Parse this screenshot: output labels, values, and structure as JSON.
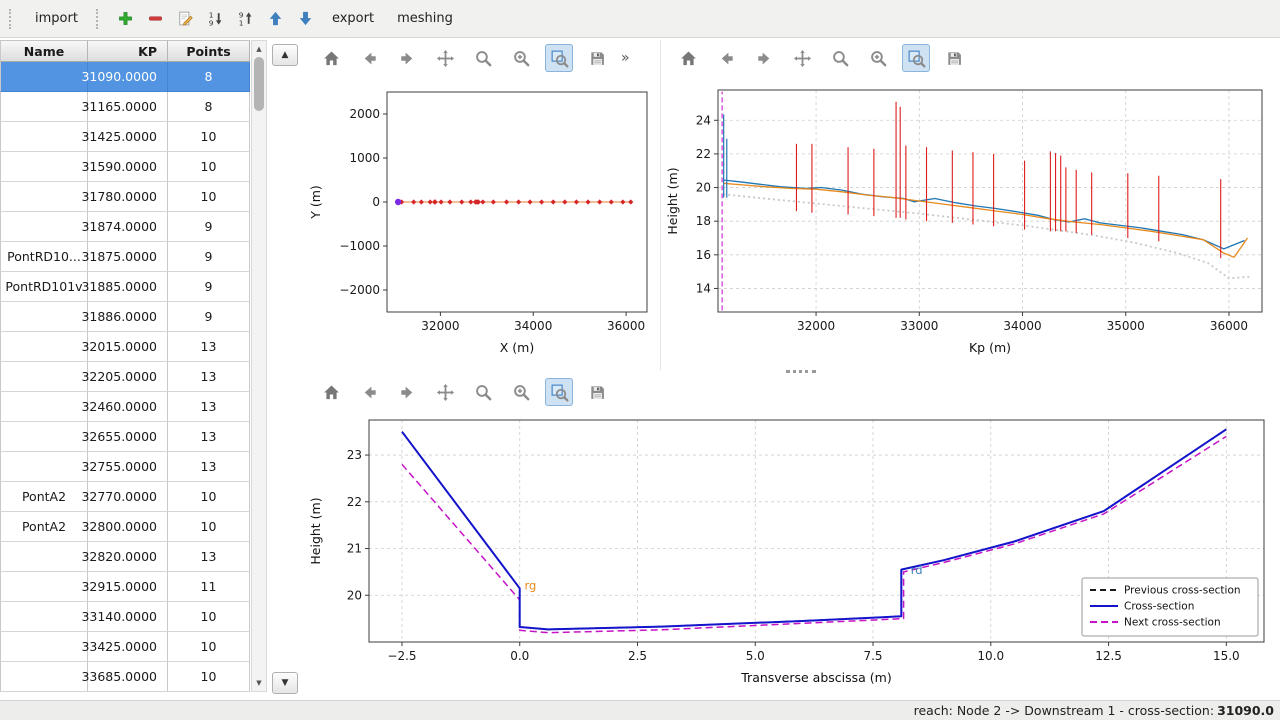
{
  "menubar": {
    "items": [
      {
        "kind": "grip"
      },
      {
        "kind": "text",
        "name": "import",
        "label": "import"
      },
      {
        "kind": "grip"
      },
      {
        "kind": "icon",
        "name": "add"
      },
      {
        "kind": "icon",
        "name": "remove"
      },
      {
        "kind": "icon",
        "name": "edit"
      },
      {
        "kind": "icon",
        "name": "sort-asc"
      },
      {
        "kind": "icon",
        "name": "sort-desc"
      },
      {
        "kind": "icon",
        "name": "move-up"
      },
      {
        "kind": "icon",
        "name": "move-down"
      },
      {
        "kind": "text",
        "name": "export",
        "label": "export"
      },
      {
        "kind": "text",
        "name": "meshing",
        "label": "meshing"
      }
    ]
  },
  "table": {
    "columns": [
      "Name",
      "KP",
      "Points"
    ],
    "selected_index": 0,
    "rows": [
      [
        "",
        "31090.0000",
        "8"
      ],
      [
        "",
        "31165.0000",
        "8"
      ],
      [
        "",
        "31425.0000",
        "10"
      ],
      [
        "",
        "31590.0000",
        "10"
      ],
      [
        "",
        "31780.0000",
        "10"
      ],
      [
        "",
        "31874.0000",
        "9"
      ],
      [
        "PontRD10...",
        "31875.0000",
        "9"
      ],
      [
        "PontRD101v",
        "31885.0000",
        "9"
      ],
      [
        "",
        "31886.0000",
        "9"
      ],
      [
        "",
        "32015.0000",
        "13"
      ],
      [
        "",
        "32205.0000",
        "13"
      ],
      [
        "",
        "32460.0000",
        "13"
      ],
      [
        "",
        "32655.0000",
        "13"
      ],
      [
        "",
        "32755.0000",
        "13"
      ],
      [
        "PontA2",
        "32770.0000",
        "10"
      ],
      [
        "PontA2",
        "32800.0000",
        "10"
      ],
      [
        "",
        "32820.0000",
        "13"
      ],
      [
        "",
        "32915.0000",
        "11"
      ],
      [
        "",
        "33140.0000",
        "10"
      ],
      [
        "",
        "33425.0000",
        "10"
      ],
      [
        "",
        "33685.0000",
        "10"
      ]
    ]
  },
  "scrollbar": {
    "up": "▲",
    "down": "▼"
  },
  "side_buttons": {
    "up": "▲",
    "down": "▼"
  },
  "plot_toolbar_icons": [
    "home",
    "back",
    "forward",
    "pan",
    "zoom",
    "zoom-in",
    "zoom-rect",
    "save"
  ],
  "toolbar_overflow": "»",
  "statusbar": {
    "prefix": "reach: Node 2 -> Downstream 1 - cross-section: ",
    "value": "31090.0"
  },
  "chart_data": [
    {
      "id": "plan",
      "type": "line",
      "title": "",
      "xlabel": "X (m)",
      "ylabel": "Y (m)",
      "xlim": [
        30850,
        36450
      ],
      "ylim": [
        -2500,
        2500
      ],
      "xticks": {
        "v": [
          32000,
          34000,
          36000
        ],
        "labels": [
          "32000",
          "34000",
          "36000"
        ]
      },
      "yticks": {
        "v": [
          -2000,
          -1000,
          0,
          1000,
          2000
        ],
        "labels": [
          "−2000",
          "−1000",
          "0",
          "1000",
          "2000"
        ]
      },
      "grid": false,
      "series": [
        {
          "name": "river-axis",
          "color": "#e87e2e",
          "width": 1.1,
          "marker": {
            "shape": "diamond",
            "size": 2.6,
            "color": "#d62728"
          },
          "x": [
            31090,
            31165,
            31425,
            31590,
            31780,
            31874,
            31885,
            31886,
            32015,
            32205,
            32460,
            32655,
            32755,
            32770,
            32800,
            32820,
            32915,
            33140,
            33425,
            33685,
            33930,
            34180,
            34430,
            34680,
            34930,
            35180,
            35430,
            35680,
            35930,
            36100
          ],
          "y_const": 0
        },
        {
          "name": "current-cross-section-point",
          "color": "none",
          "marker": {
            "shape": "circle",
            "size": 3.2,
            "color": "#7b2be2"
          },
          "x": [
            31090
          ],
          "y_const": 0
        }
      ]
    },
    {
      "id": "profile",
      "type": "line",
      "title": "",
      "xlabel": "Kp (m)",
      "ylabel": "Height (m)",
      "xlim": [
        31050,
        36320
      ],
      "ylim": [
        12.6,
        25.8
      ],
      "xticks": {
        "v": [
          32000,
          33000,
          34000,
          35000,
          36000
        ],
        "labels": [
          "32000",
          "33000",
          "34000",
          "35000",
          "36000"
        ]
      },
      "yticks": {
        "v": [
          14,
          16,
          18,
          20,
          22,
          24
        ],
        "labels": [
          "14",
          "16",
          "18",
          "20",
          "22",
          "24"
        ]
      },
      "grid": true,
      "series": [
        {
          "name": "bed-bottom-dotted",
          "color": "#c8c8c8",
          "width": 1.8,
          "dash": [
            2,
            3
          ],
          "x": [
            31100,
            31500,
            32000,
            32500,
            33000,
            33500,
            34000,
            34300,
            34700,
            35100,
            35500,
            35800,
            36000,
            36200
          ],
          "y": [
            19.6,
            19.35,
            19.05,
            18.75,
            18.45,
            18.1,
            17.75,
            17.5,
            17.15,
            16.7,
            16.1,
            15.5,
            14.6,
            14.7
          ]
        },
        {
          "name": "left-bank",
          "color": "#1f77b4",
          "width": 1.3,
          "x": [
            31100,
            31250,
            31450,
            31650,
            31900,
            32050,
            32250,
            32450,
            32650,
            32850,
            32950,
            33150,
            33350,
            33550,
            33750,
            33950,
            34150,
            34300,
            34450,
            34600,
            34750,
            34950,
            35150,
            35350,
            35550,
            35750,
            35950,
            36150
          ],
          "y": [
            20.45,
            20.35,
            20.2,
            20.05,
            19.95,
            20.0,
            19.85,
            19.6,
            19.45,
            19.35,
            19.15,
            19.35,
            19.1,
            18.9,
            18.75,
            18.55,
            18.35,
            18.1,
            17.95,
            18.15,
            17.9,
            17.75,
            17.6,
            17.4,
            17.2,
            16.9,
            16.35,
            16.85
          ]
        },
        {
          "name": "right-bank",
          "color": "#e8891c",
          "width": 1.3,
          "x": [
            31100,
            31300,
            31500,
            31750,
            32000,
            32250,
            32500,
            32750,
            33000,
            33250,
            33500,
            33750,
            34000,
            34250,
            34500,
            34750,
            35000,
            35250,
            35500,
            35750,
            35950,
            36050,
            36180
          ],
          "y": [
            20.25,
            20.15,
            20.05,
            19.95,
            19.9,
            19.75,
            19.55,
            19.4,
            19.2,
            19.0,
            18.8,
            18.6,
            18.4,
            18.15,
            17.95,
            17.8,
            17.6,
            17.4,
            17.15,
            16.9,
            16.1,
            15.85,
            17.0
          ]
        }
      ],
      "vlines": [
        {
          "name": "cross-section-spikes",
          "color": "#dd1c1c",
          "width": 1.1,
          "segments": [
            [
              31810,
              18.6,
              22.6
            ],
            [
              31960,
              18.5,
              22.6
            ],
            [
              32310,
              18.4,
              22.4
            ],
            [
              32560,
              18.3,
              22.3
            ],
            [
              32775,
              18.2,
              25.1
            ],
            [
              32815,
              18.2,
              24.8
            ],
            [
              32870,
              18.1,
              22.5
            ],
            [
              33070,
              18.0,
              22.4
            ],
            [
              33320,
              17.9,
              22.2
            ],
            [
              33520,
              17.8,
              22.1
            ],
            [
              33720,
              17.7,
              22.0
            ],
            [
              34020,
              17.5,
              21.6
            ],
            [
              34270,
              17.4,
              22.15
            ],
            [
              34320,
              17.4,
              22.05
            ],
            [
              34370,
              17.4,
              21.9
            ],
            [
              34420,
              17.4,
              21.2
            ],
            [
              34520,
              17.3,
              21.05
            ],
            [
              34670,
              17.2,
              20.9
            ],
            [
              35020,
              17.0,
              20.85
            ],
            [
              35320,
              16.8,
              20.7
            ],
            [
              35920,
              15.8,
              20.5
            ]
          ]
        },
        {
          "name": "upstream-spikes",
          "color": "#1f77b4",
          "width": 1.2,
          "segments": [
            [
              31105,
              19.4,
              24.35
            ],
            [
              31135,
              19.4,
              22.9
            ]
          ]
        },
        {
          "name": "current-position-marker",
          "color": "#d33bd3",
          "width": 1.3,
          "dash": [
            5,
            3
          ],
          "segments": [
            [
              31090,
              12.7,
              25.7
            ]
          ]
        }
      ]
    },
    {
      "id": "cross",
      "type": "line",
      "title": "",
      "xlabel": "Transverse abscissa (m)",
      "ylabel": "Height (m)",
      "xlim": [
        -3.2,
        15.8
      ],
      "ylim": [
        19.0,
        23.75
      ],
      "xticks": {
        "v": [
          -2.5,
          0,
          2.5,
          5,
          7.5,
          10,
          12.5,
          15
        ],
        "labels": [
          "−2.5",
          "0.0",
          "2.5",
          "5.0",
          "7.5",
          "10.0",
          "12.5",
          "15.0"
        ]
      },
      "yticks": {
        "v": [
          20,
          21,
          22,
          23
        ],
        "labels": [
          "20",
          "21",
          "22",
          "23"
        ]
      },
      "grid": true,
      "series": [
        {
          "name": "previous-cross-section",
          "color": "#1a1a1a",
          "width": 1.6,
          "dash": [
            6,
            4
          ],
          "x": [
            -2.5,
            0.0,
            0.0,
            0.6,
            3.0,
            6.0,
            8.1,
            8.1,
            9.0,
            10.5,
            12.4,
            15.0
          ],
          "y": [
            23.5,
            20.15,
            19.32,
            19.27,
            19.33,
            19.45,
            19.55,
            20.55,
            20.75,
            21.15,
            21.8,
            23.55
          ]
        },
        {
          "name": "next-cross-section",
          "color": "#c513c5",
          "width": 1.5,
          "dash": [
            7,
            4
          ],
          "x": [
            -2.5,
            0.0,
            0.0,
            0.6,
            3.0,
            6.0,
            8.15,
            8.15,
            9.0,
            10.5,
            12.4,
            15.0
          ],
          "y": [
            22.8,
            19.9,
            19.25,
            19.2,
            19.26,
            19.4,
            19.5,
            20.5,
            20.7,
            21.1,
            21.74,
            23.4
          ]
        },
        {
          "name": "cross-section",
          "color": "#1414cc",
          "width": 2,
          "x": [
            -2.5,
            0.0,
            0.0,
            0.6,
            3.0,
            6.0,
            8.1,
            8.1,
            9.0,
            10.5,
            12.4,
            15.0
          ],
          "y": [
            23.5,
            20.15,
            19.32,
            19.27,
            19.33,
            19.45,
            19.55,
            20.55,
            20.75,
            21.15,
            21.8,
            23.55
          ]
        }
      ],
      "annotations": [
        {
          "text": "rg",
          "x": 0.1,
          "y": 20.12,
          "color": "#e8891c"
        },
        {
          "text": "rd",
          "x": 8.3,
          "y": 20.45,
          "color": "#3a7fb8"
        }
      ],
      "legend": {
        "pos": "bottom-right",
        "entries": [
          {
            "label": "Previous cross-section",
            "color": "#1a1a1a",
            "dash": [
              6,
              4
            ],
            "width": 2
          },
          {
            "label": "Cross-section",
            "color": "#1414cc",
            "width": 2
          },
          {
            "label": "Next cross-section",
            "color": "#c513c5",
            "dash": [
              7,
              4
            ],
            "width": 2
          }
        ]
      }
    }
  ]
}
